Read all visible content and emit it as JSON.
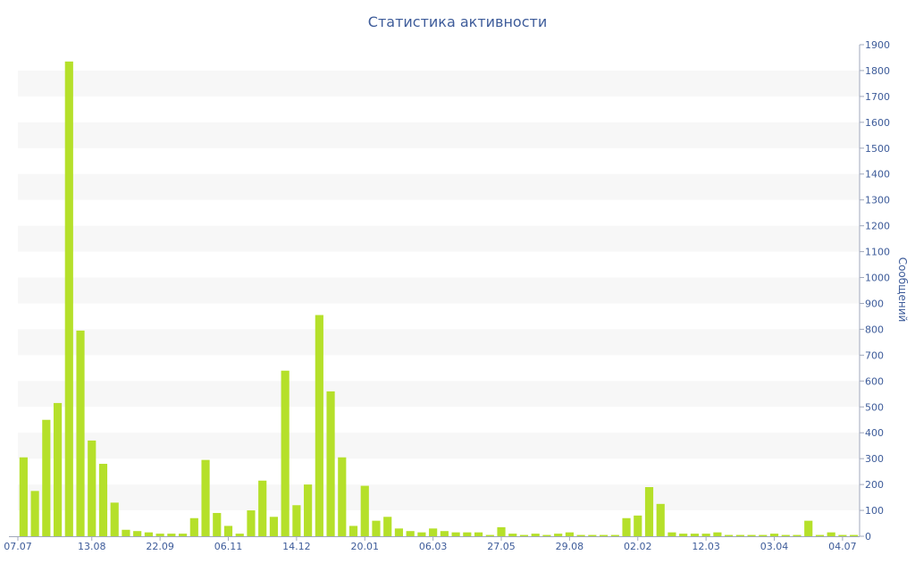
{
  "chart_data": {
    "type": "bar",
    "title": "Статистика активности",
    "ylabel": "Сообщений",
    "xlabel": "",
    "ylim": [
      0,
      1900
    ],
    "ytick_step": 100,
    "y_axis_side": "right",
    "grid": "alternating horizontal bands",
    "bar_color": "#b5e02a",
    "x_tick_labels": [
      {
        "label": "07.07",
        "index": 0
      },
      {
        "label": "13.08",
        "index": 6
      },
      {
        "label": "22.09",
        "index": 12
      },
      {
        "label": "06.11",
        "index": 18
      },
      {
        "label": "14.12",
        "index": 24
      },
      {
        "label": "20.01",
        "index": 30
      },
      {
        "label": "06.03",
        "index": 36
      },
      {
        "label": "27.05",
        "index": 42
      },
      {
        "label": "29.08",
        "index": 48
      },
      {
        "label": "02.02",
        "index": 54
      },
      {
        "label": "12.03",
        "index": 60
      },
      {
        "label": "03.04",
        "index": 66
      },
      {
        "label": "04.07",
        "index": 72
      }
    ],
    "values": [
      305,
      175,
      450,
      515,
      1835,
      795,
      370,
      280,
      130,
      25,
      20,
      15,
      10,
      10,
      10,
      70,
      295,
      90,
      40,
      10,
      100,
      215,
      75,
      640,
      120,
      200,
      855,
      560,
      305,
      40,
      195,
      60,
      75,
      30,
      20,
      15,
      30,
      20,
      15,
      15,
      15,
      5,
      35,
      10,
      5,
      10,
      5,
      10,
      15,
      5,
      5,
      5,
      5,
      70,
      80,
      190,
      125,
      15,
      10,
      10,
      10,
      15,
      5,
      5,
      5,
      5,
      10,
      5,
      5,
      60,
      5,
      15,
      5,
      5
    ]
  },
  "colors": {
    "text": "#3e5c9a",
    "band": "#f7f7f7",
    "axis": "#a0a8bc"
  }
}
